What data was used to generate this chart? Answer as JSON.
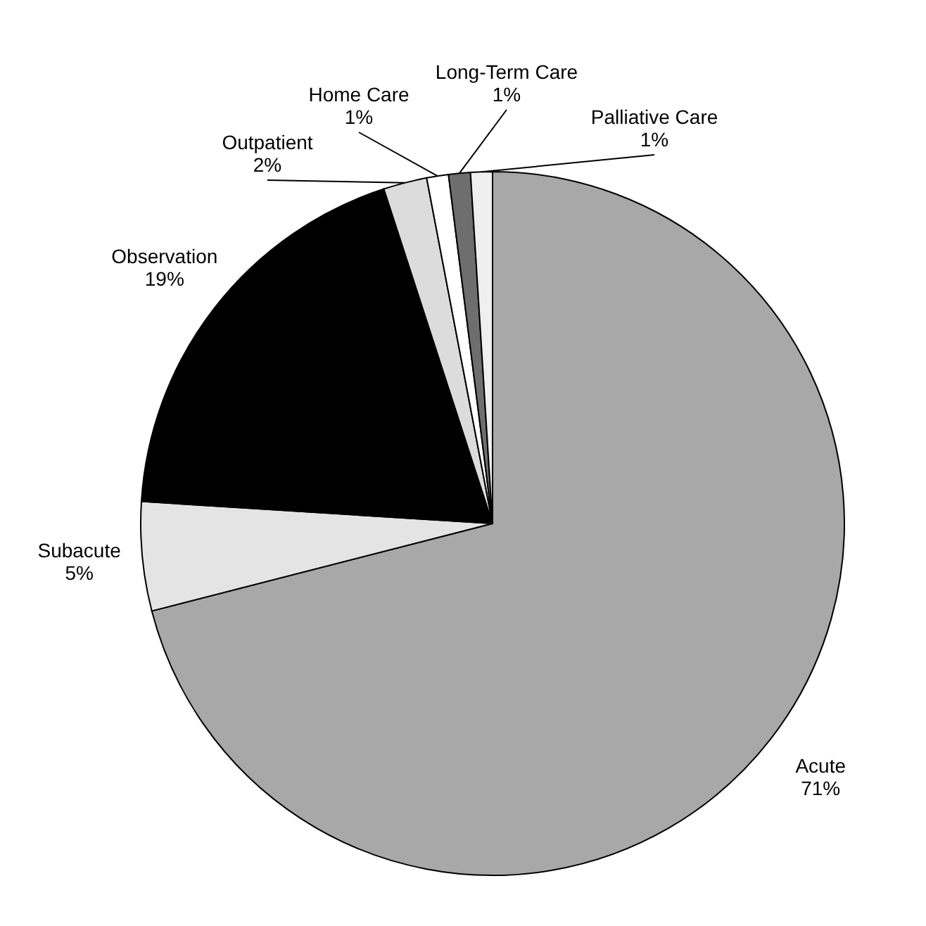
{
  "chart_data": {
    "type": "pie",
    "categories": [
      "Acute",
      "Subacute",
      "Observation",
      "Outpatient",
      "Home Care",
      "Long-Term Care",
      "Palliative Care"
    ],
    "values": [
      71,
      5,
      19,
      2,
      1,
      1,
      1
    ],
    "value_labels": [
      "71%",
      "5%",
      "19%",
      "2%",
      "1%",
      "1%",
      "1%"
    ],
    "colors": [
      "#a8a8a8",
      "#e4e4e4",
      "#000000",
      "#dcdcdc",
      "#ffffff",
      "#6e6e6e",
      "#efefef"
    ]
  }
}
